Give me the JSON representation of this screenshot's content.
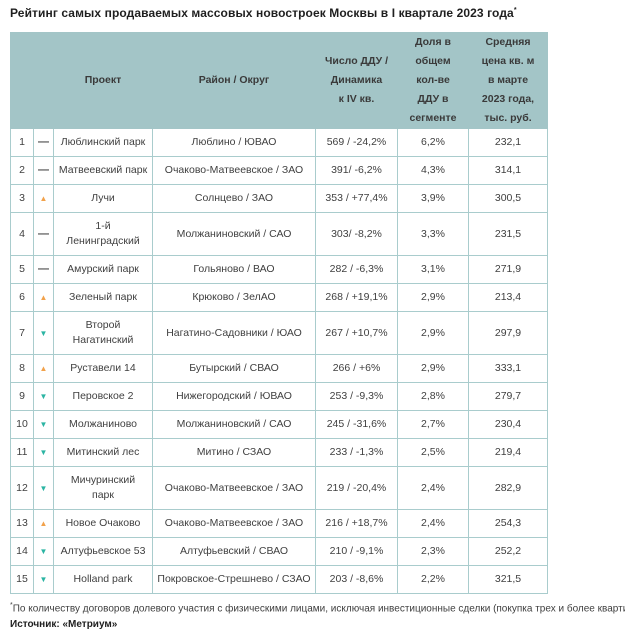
{
  "title": {
    "text": "Рейтинг самых продаваемых массовых новостроек Москвы в I квартале 2023 года",
    "marker": "*"
  },
  "colors": {
    "header_bg": "#a3c5c7",
    "cell_border": "#a9cccd",
    "trend_up": "#f2a24b",
    "trend_down": "#2bb4a3",
    "text": "#3f3f3f"
  },
  "icons": {
    "up": "▲",
    "down": "▼",
    "same": "—"
  },
  "table": {
    "headers": {
      "rank": "",
      "trend": "",
      "project": "Проект",
      "district": "Район / Округ",
      "deals": "Число ДДУ /\nДинамика\nк IV кв.",
      "share": "Доля в\nобщем\nкол-ве\nДДУ в\nсегменте",
      "price": "Средняя\nцена кв. м\nв марте\n2023 года,\nтыс. руб."
    },
    "rows": [
      {
        "rank": "1",
        "trend": "same",
        "project": "Люблинский парк",
        "district": "Люблино / ЮВАО",
        "deals": "569 / -24,2%",
        "share": "6,2%",
        "price": "232,1"
      },
      {
        "rank": "2",
        "trend": "same",
        "project": "Матвеевский парк",
        "district": "Очаково-Матвеевское / ЗАО",
        "deals": "391/ -6,2%",
        "share": "4,3%",
        "price": "314,1"
      },
      {
        "rank": "3",
        "trend": "up",
        "project": "Лучи",
        "district": "Солнцево / ЗАО",
        "deals": "353 / +77,4%",
        "share": "3,9%",
        "price": "300,5"
      },
      {
        "rank": "4",
        "trend": "same",
        "project": "1-й\nЛенинградский",
        "district": "Молжаниновский / САО",
        "deals": "303/ -8,2%",
        "share": "3,3%",
        "price": "231,5"
      },
      {
        "rank": "5",
        "trend": "same",
        "project": "Амурский парк",
        "district": "Гольяново / ВАО",
        "deals": "282 / -6,3%",
        "share": "3,1%",
        "price": "271,9"
      },
      {
        "rank": "6",
        "trend": "up",
        "project": "Зеленый парк",
        "district": "Крюково / ЗелАО",
        "deals": "268 / +19,1%",
        "share": "2,9%",
        "price": "213,4"
      },
      {
        "rank": "7",
        "trend": "down",
        "project": "Второй\nНагатинский",
        "district": "Нагатино-Садовники / ЮАО",
        "deals": "267 / +10,7%",
        "share": "2,9%",
        "price": "297,9"
      },
      {
        "rank": "8",
        "trend": "up",
        "project": "Руставели 14",
        "district": "Бутырский / СВАО",
        "deals": "266 / +6%",
        "share": "2,9%",
        "price": "333,1"
      },
      {
        "rank": "9",
        "trend": "down",
        "project": "Перовское 2",
        "district": "Нижегородский / ЮВАО",
        "deals": "253 / -9,3%",
        "share": "2,8%",
        "price": "279,7"
      },
      {
        "rank": "10",
        "trend": "down",
        "project": "Молжаниново",
        "district": "Молжаниновский / САО",
        "deals": "245 / -31,6%",
        "share": "2,7%",
        "price": "230,4"
      },
      {
        "rank": "11",
        "trend": "down",
        "project": "Митинский лес",
        "district": "Митино / СЗАО",
        "deals": "233 / -1,3%",
        "share": "2,5%",
        "price": "219,4"
      },
      {
        "rank": "12",
        "trend": "down",
        "project": "Мичуринский\nпарк",
        "district": "Очаково-Матвеевское / ЗАО",
        "deals": "219 / -20,4%",
        "share": "2,4%",
        "price": "282,9"
      },
      {
        "rank": "13",
        "trend": "up",
        "project": "Новое Очаково",
        "district": "Очаково-Матвеевское / ЗАО",
        "deals": "216 / +18,7%",
        "share": "2,4%",
        "price": "254,3"
      },
      {
        "rank": "14",
        "trend": "down",
        "project": "Алтуфьевское 53",
        "district": "Алтуфьевский / СВАО",
        "deals": "210 / -9,1%",
        "share": "2,3%",
        "price": "252,2"
      },
      {
        "rank": "15",
        "trend": "down",
        "project": "Holland park",
        "district": "Покровское-Стрешнево / СЗАО",
        "deals": "203 / -8,6%",
        "share": "2,2%",
        "price": "321,5"
      }
    ]
  },
  "footnote": {
    "symbol": "*",
    "text": "По количеству договоров долевого участия с физическими лицами, исключая инвестиционные сделки (покупка трех и более квартир)."
  },
  "source": "Источник: «Метриум»"
}
